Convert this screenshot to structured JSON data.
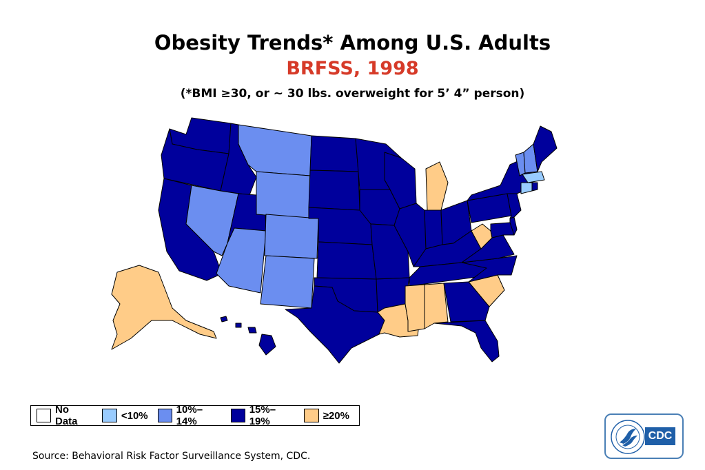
{
  "title": "Obesity Trends* Among U.S. Adults",
  "subtitle": "BRFSS, 1998",
  "note": "(*BMI ≥30, or ~ 30 lbs. overweight for 5’ 4” person)",
  "colors": {
    "no_data": "#ffffff",
    "lt10": "#99ccff",
    "r10_14": "#6b8ef0",
    "r15_19": "#00009c",
    "ge20": "#ffcc88",
    "title_red": "#d63a28"
  },
  "legend": [
    {
      "key": "no_data",
      "label": "No Data",
      "color": "#ffffff"
    },
    {
      "key": "lt10",
      "label": "<10%",
      "color": "#99ccff"
    },
    {
      "key": "r10_14",
      "label": "10%–14%",
      "color": "#6b8ef0"
    },
    {
      "key": "r15_19",
      "label": "15%–19%",
      "color": "#00009c"
    },
    {
      "key": "ge20",
      "label": "≥20%",
      "color": "#ffcc88"
    }
  ],
  "states": {
    "WA": "r15_19",
    "OR": "r15_19",
    "CA": "r15_19",
    "ID": "r15_19",
    "NV": "r10_14",
    "UT": "r15_19",
    "AZ": "r10_14",
    "MT": "r10_14",
    "WY": "r10_14",
    "CO": "r10_14",
    "NM": "r10_14",
    "ND": "r15_19",
    "SD": "r15_19",
    "NE": "r15_19",
    "KS": "r15_19",
    "OK": "r15_19",
    "TX": "r15_19",
    "MN": "r15_19",
    "IA": "r15_19",
    "MO": "r15_19",
    "AR": "r15_19",
    "LA": "ge20",
    "WI": "r15_19",
    "IL": "r15_19",
    "MI": "ge20",
    "IN": "r15_19",
    "OH": "r15_19",
    "KY": "r15_19",
    "TN": "r15_19",
    "MS": "ge20",
    "AL": "ge20",
    "GA": "r15_19",
    "FL": "r15_19",
    "SC": "ge20",
    "NC": "r15_19",
    "VA": "r15_19",
    "WV": "ge20",
    "PA": "r15_19",
    "NY": "r15_19",
    "NJ": "r15_19",
    "DE": "r15_19",
    "MD": "r15_19",
    "VT": "r10_14",
    "NH": "r10_14",
    "ME": "r15_19",
    "MA": "lt10",
    "CT": "lt10",
    "RI": "r15_19",
    "AK": "ge20",
    "HI": "r15_19"
  },
  "source": "Source: Behavioral Risk Factor Surveillance System, CDC.",
  "logo": {
    "text": "CDC"
  }
}
